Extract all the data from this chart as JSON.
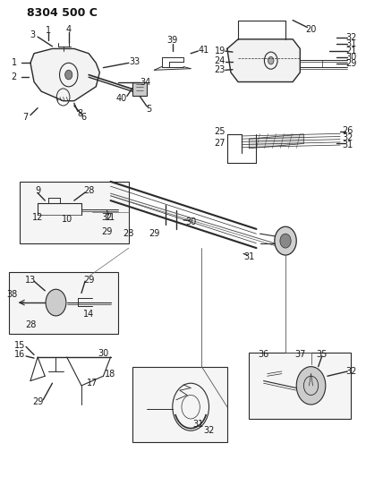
{
  "title_code": "8304 500 C",
  "bg_color": "#ffffff",
  "line_color": "#2a2a2a",
  "title_fontsize": 9,
  "label_fontsize": 7,
  "fig_width": 4.1,
  "fig_height": 5.33,
  "dpi": 100
}
